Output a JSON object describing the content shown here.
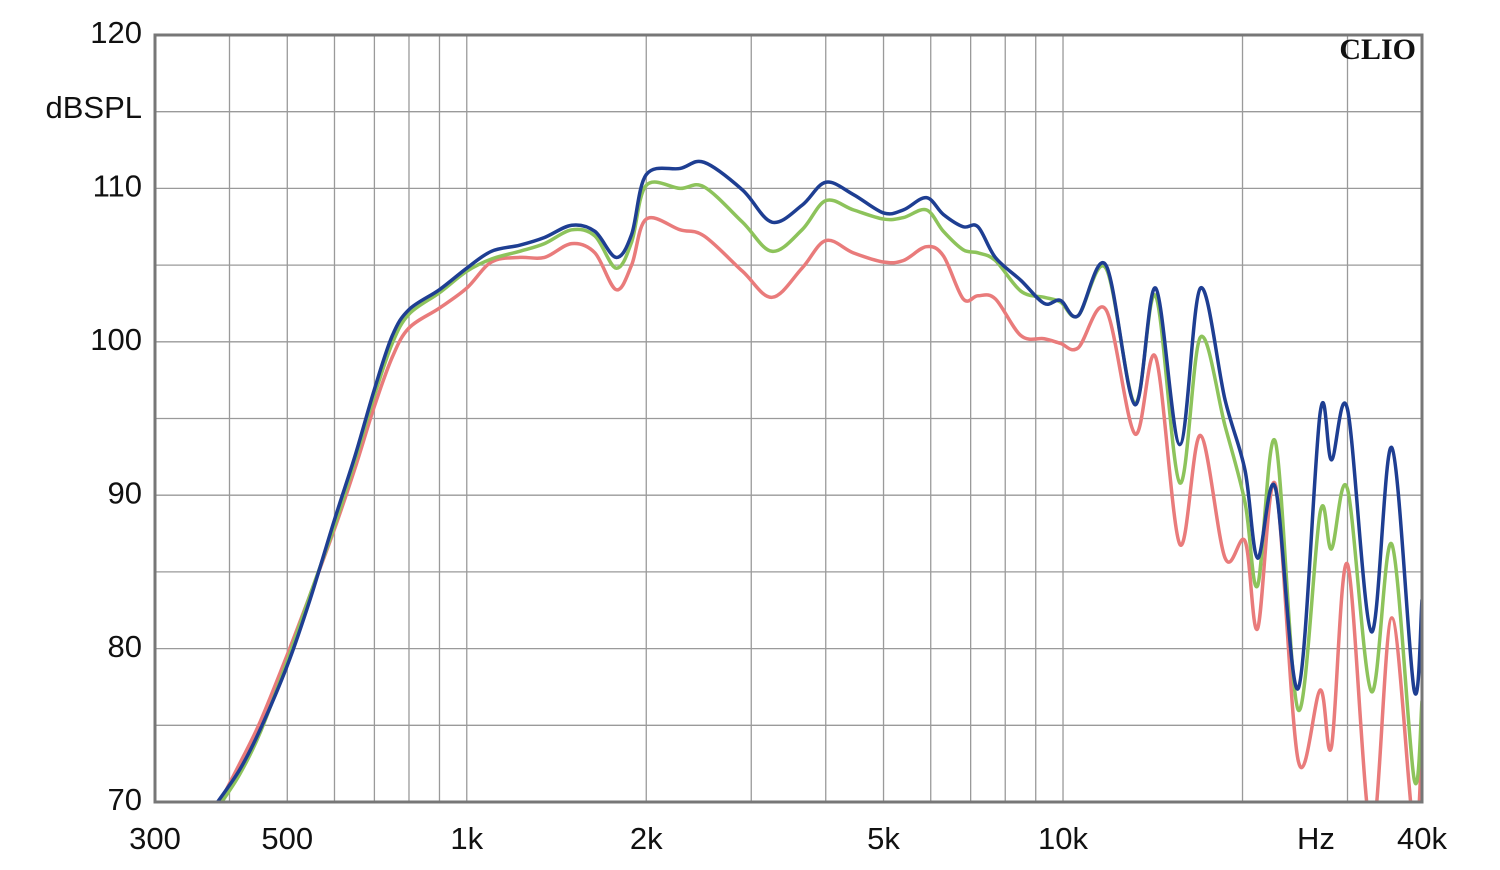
{
  "chart_data": {
    "type": "line",
    "annotation": "CLIO",
    "y_label": "dBSPL",
    "x_label": "Hz",
    "log_x": true,
    "grid": true,
    "xlim": [
      300,
      40000
    ],
    "ylim": [
      70,
      120
    ],
    "xticks": [
      300,
      500,
      {
        "value": 1000,
        "label": "1k"
      },
      {
        "value": 2000,
        "label": "2k"
      },
      {
        "value": 5000,
        "label": "5k"
      },
      {
        "value": 10000,
        "label": "10k"
      },
      {
        "value": 40000,
        "label": "40k"
      }
    ],
    "xgrid_minor": [
      400,
      600,
      700,
      800,
      900,
      3000,
      4000,
      6000,
      7000,
      8000,
      9000,
      20000,
      30000
    ],
    "yticks": [
      70,
      80,
      90,
      100,
      110,
      120
    ],
    "ygrid_minor": [
      75,
      85,
      95,
      105,
      115
    ],
    "x": [
      382,
      416,
      450,
      500,
      546,
      600,
      650,
      700,
      750,
      800,
      900,
      1000,
      1100,
      1227,
      1350,
      1500,
      1640,
      1780,
      1890,
      2000,
      2280,
      2500,
      2900,
      3250,
      3650,
      4000,
      4450,
      5000,
      5400,
      5900,
      6300,
      6800,
      7200,
      7700,
      8500,
      9300,
      9900,
      10600,
      11800,
      13200,
      14300,
      15700,
      17000,
      18700,
      20200,
      21200,
      22700,
      24800,
      27000,
      28200,
      30000,
      32900,
      35600,
      38800,
      40000
    ],
    "series": [
      {
        "name": "red",
        "color": "#e97b7b",
        "values": [
          69.7,
          72.5,
          75.2,
          79.6,
          83.5,
          87.8,
          91.8,
          95.8,
          99.0,
          100.9,
          102.2,
          103.5,
          105.2,
          105.5,
          105.5,
          106.4,
          105.8,
          103.4,
          105.0,
          108.0,
          107.3,
          106.9,
          104.6,
          102.9,
          104.8,
          106.6,
          105.8,
          105.2,
          105.3,
          106.2,
          105.6,
          102.8,
          103.0,
          102.8,
          100.4,
          100.2,
          99.9,
          99.6,
          102.1,
          94.0,
          99.0,
          86.8,
          93.9,
          85.9,
          87.0,
          81.3,
          90.7,
          72.7,
          77.3,
          73.6,
          85.5,
          68,
          82.0,
          68,
          74
        ]
      },
      {
        "name": "green",
        "color": "#8dc35b",
        "values": [
          69.6,
          71.8,
          74.5,
          79.2,
          83.5,
          88.0,
          92.3,
          96.5,
          99.9,
          101.8,
          103.2,
          104.6,
          105.4,
          105.9,
          106.4,
          107.3,
          106.9,
          104.8,
          106.5,
          110.2,
          110.0,
          110.1,
          107.8,
          105.9,
          107.3,
          109.2,
          108.6,
          108.0,
          108.1,
          108.6,
          107.2,
          106.0,
          105.8,
          105.3,
          103.3,
          102.9,
          102.6,
          101.7,
          104.8,
          96.0,
          103.0,
          90.8,
          100.3,
          94.5,
          89.5,
          84.1,
          93.5,
          76.0,
          88.9,
          86.5,
          90.4,
          77.2,
          86.8,
          71.5,
          76.6
        ]
      },
      {
        "name": "blue",
        "color": "#1e3e92",
        "values": [
          70.0,
          72.1,
          74.7,
          78.9,
          83.2,
          88.4,
          92.6,
          96.9,
          100.4,
          102.1,
          103.4,
          104.8,
          105.9,
          106.3,
          106.8,
          107.6,
          107.2,
          105.5,
          107.0,
          110.9,
          111.3,
          111.7,
          109.9,
          107.8,
          108.9,
          110.4,
          109.6,
          108.4,
          108.6,
          109.4,
          108.3,
          107.5,
          107.5,
          105.5,
          104.0,
          102.5,
          102.7,
          101.7,
          105.0,
          95.9,
          103.5,
          93.3,
          103.5,
          96.2,
          91.6,
          85.9,
          90.5,
          77.4,
          95.4,
          92.3,
          95.6,
          81.1,
          93.1,
          77.3,
          83.2
        ]
      }
    ]
  }
}
